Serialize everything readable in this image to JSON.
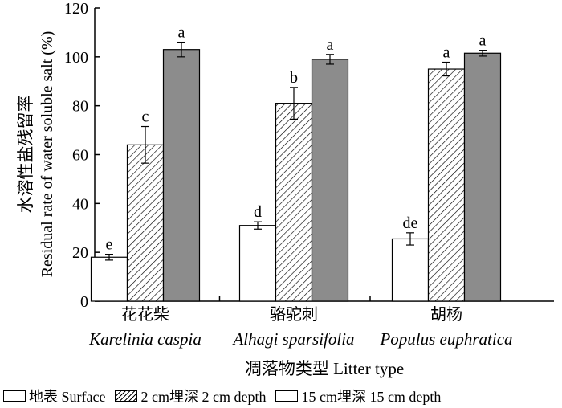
{
  "chart_data": {
    "type": "bar",
    "ylabel_cn": "水溶性盐残留率",
    "ylabel_en": "Residual rate of water soluble salt (%)",
    "xlabel": "凋落物类型 Litter type",
    "ylim": [
      0,
      120
    ],
    "yticks": [
      0,
      20,
      40,
      60,
      80,
      100,
      120
    ],
    "categories": [
      {
        "cn": "花花柴",
        "en": "Karelinia caspia"
      },
      {
        "cn": "骆驼刺",
        "en": "Alhagi sparsifolia"
      },
      {
        "cn": "胡杨",
        "en": "Populus euphratica"
      }
    ],
    "series": [
      {
        "name": "地表 Surface",
        "fill": "#ffffff",
        "pattern": "none",
        "values": [
          18,
          31,
          25.5
        ],
        "errors": [
          1.2,
          1.5,
          2.5
        ],
        "letters": [
          "e",
          "d",
          "de"
        ]
      },
      {
        "name": "2 cm埋深 2 cm depth",
        "fill": "#ffffff",
        "pattern": "hatch",
        "values": [
          64,
          81,
          95
        ],
        "errors": [
          7.5,
          6.5,
          2.8
        ],
        "letters": [
          "c",
          "b",
          "a"
        ]
      },
      {
        "name": "15 cm埋深 15 cm depth",
        "fill": "#8c8c8c",
        "pattern": "none",
        "values": [
          103,
          99,
          101.5
        ],
        "errors": [
          3,
          2,
          1.2
        ],
        "letters": [
          "a",
          "a",
          "a"
        ]
      }
    ],
    "legend_position": "bottom"
  }
}
